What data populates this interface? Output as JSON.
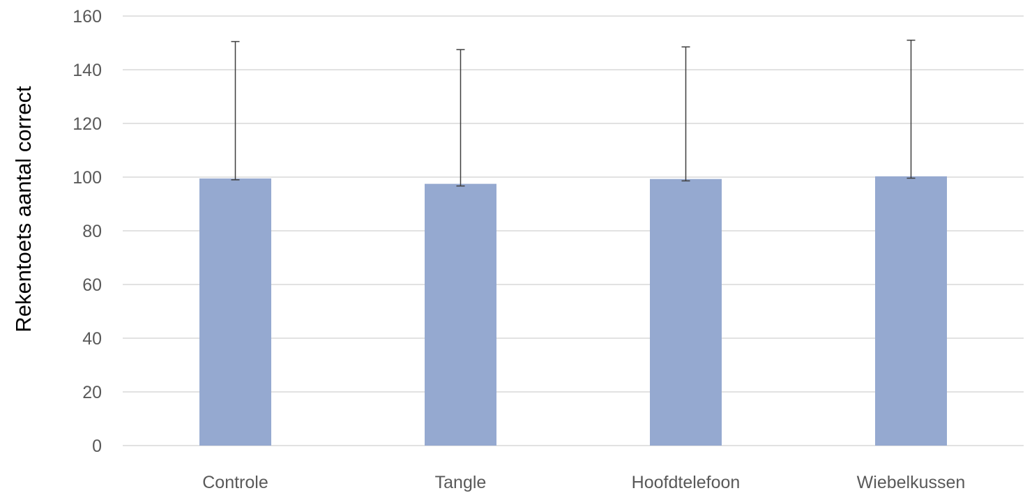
{
  "chart_data": {
    "type": "bar",
    "title": "",
    "xlabel": "",
    "ylabel": "Rekentoets aantal correct",
    "categories": [
      "Controle",
      "Tangle",
      "Hoofdtelefoon",
      "Wiebelkussen"
    ],
    "values": [
      99.5,
      97.5,
      99.3,
      100.3
    ],
    "error_low": [
      99.0,
      96.7,
      98.6,
      99.6
    ],
    "error_high": [
      150.5,
      147.5,
      148.5,
      151.0
    ],
    "ylim": [
      0,
      160
    ],
    "yticks": [
      0,
      20,
      40,
      60,
      80,
      100,
      120,
      140,
      160
    ],
    "grid": true,
    "legend": "none",
    "colors": {
      "bar": "#95a9d0",
      "grid": "#d9d9d9",
      "errorbar": "#3f3f3f",
      "tick_text": "#595959"
    }
  }
}
